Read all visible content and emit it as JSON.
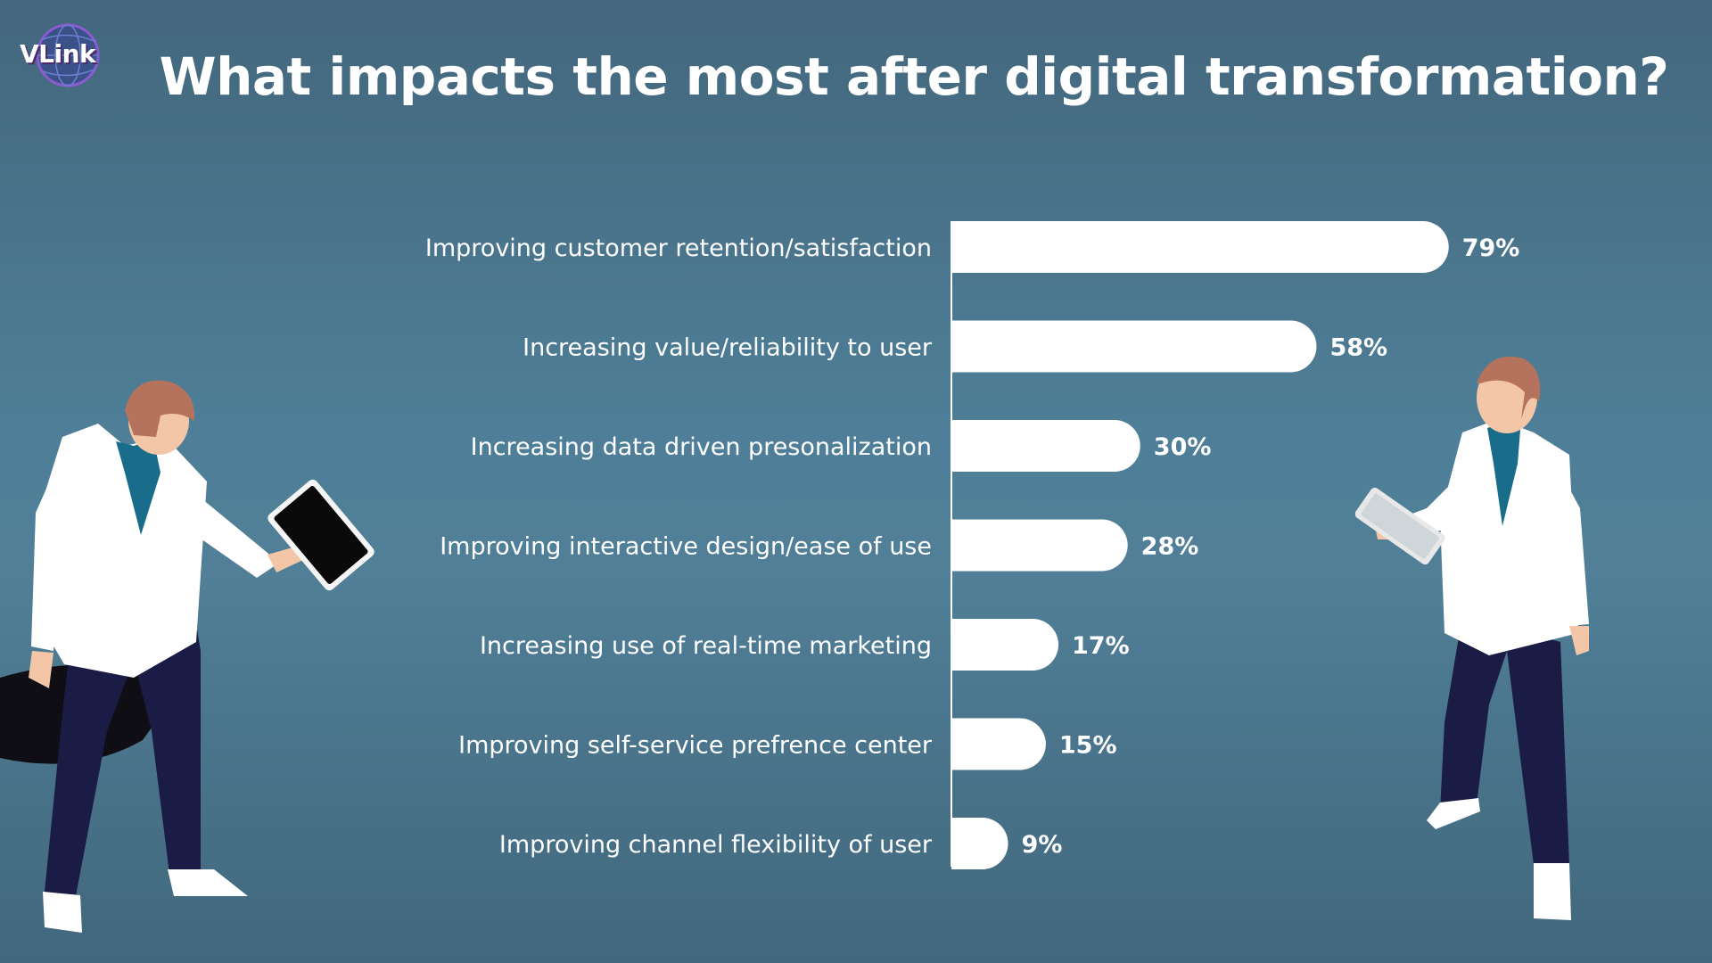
{
  "brand": {
    "logo_text": "VLink"
  },
  "title": "What impacts the most after digital transformation?",
  "colors": {
    "bar": "#ffffff",
    "coat": "#ffffff",
    "pants": "#1b1c45",
    "skin": "#f2c6a6",
    "hair": "#b5735e",
    "shirt": "#1a6d8a"
  },
  "chart_data": {
    "type": "bar",
    "orientation": "horizontal",
    "title": "What impacts the most after digital transformation?",
    "categories": [
      "Improving customer retention/satisfaction",
      "Increasing value/reliability to user",
      "Increasing data driven presonalization",
      "Improving interactive design/ease of use",
      "Increasing use of real-time marketing",
      "Improving self-service prefrence center",
      "Improving channel flexibility of user"
    ],
    "values": [
      79,
      58,
      30,
      28,
      17,
      15,
      9
    ],
    "value_labels": [
      "79%",
      "58%",
      "30%",
      "28%",
      "17%",
      "15%",
      "9%"
    ],
    "unit": "%",
    "xlabel": "",
    "ylabel": "",
    "xlim": [
      0,
      100
    ],
    "grid": false,
    "legend": "none"
  }
}
